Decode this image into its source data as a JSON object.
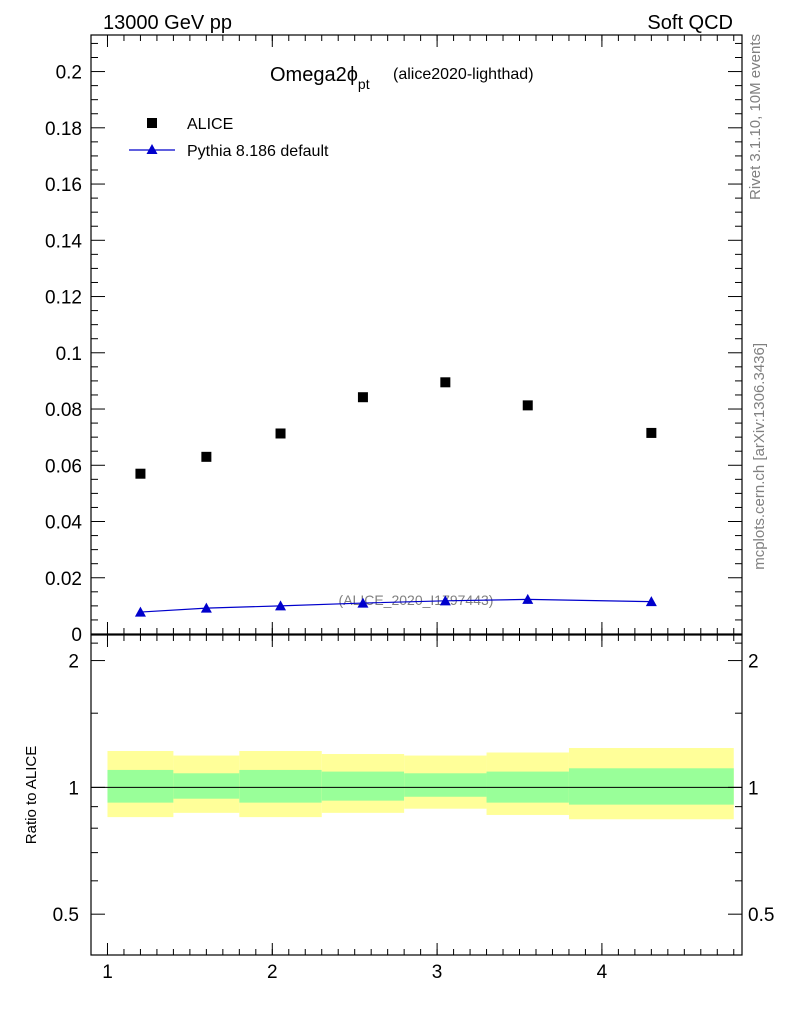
{
  "header": {
    "left": "13000 GeV pp",
    "right": "Soft QCD"
  },
  "side_text": {
    "top": "Rivet 3.1.10,  10M events",
    "bottom": "mcplots.cern.ch [arXiv:1306.3436]"
  },
  "title": {
    "main": "Omega2ϕ",
    "sub": "pt",
    "tag": "(alice2020-lighthad)"
  },
  "watermark": "(ALICE_2020_I1797443)",
  "colors": {
    "data": "#000000",
    "mc": "#0000cc",
    "band_inner": "#99ff99",
    "band_outer": "#ffff99"
  },
  "chart_data": [
    {
      "type": "scatter",
      "title": "Omega2ϕ pt",
      "xlim": [
        0.9,
        4.85
      ],
      "ylim": [
        0,
        0.213
      ],
      "yticks": [
        0,
        0.02,
        0.04,
        0.06,
        0.08,
        0.1,
        0.12,
        0.14,
        0.16,
        0.18,
        0.2
      ],
      "ytick_labels": [
        "0",
        "0.02",
        "0.04",
        "0.06",
        "0.08",
        "0.1",
        "0.12",
        "0.14",
        "0.16",
        "0.18",
        "0.2"
      ],
      "legend_position": "top-left",
      "series": [
        {
          "name": "ALICE",
          "marker": "square",
          "x": [
            1.2,
            1.6,
            2.05,
            2.55,
            3.05,
            3.55,
            4.3
          ],
          "y": [
            0.057,
            0.063,
            0.0713,
            0.0842,
            0.0895,
            0.0813,
            0.0715
          ]
        },
        {
          "name": "Pythia 8.186 default",
          "marker": "triangle",
          "x": [
            1.2,
            1.6,
            2.05,
            2.55,
            3.05,
            3.55,
            4.3
          ],
          "y": [
            0.0078,
            0.0092,
            0.01,
            0.011,
            0.0118,
            0.0123,
            0.0115
          ],
          "yerr": [
            0.0003,
            0.0003,
            0.0004,
            0.0005,
            0.0007,
            0.0015,
            0.0013
          ]
        }
      ]
    },
    {
      "type": "area",
      "ylabel": "Ratio to ALICE",
      "xlim": [
        0.9,
        4.85
      ],
      "ylim": [
        0.4,
        2.3
      ],
      "yscale": "log",
      "xticks": [
        1,
        2,
        3,
        4
      ],
      "xtick_labels": [
        "1",
        "2",
        "3",
        "4"
      ],
      "yticks": [
        0.5,
        1,
        2
      ],
      "ytick_labels": [
        "0.5",
        "1",
        "2"
      ],
      "reference_line": 1,
      "bands": [
        {
          "xlo": 1.0,
          "xhi": 1.4,
          "inner": [
            0.92,
            1.1
          ],
          "outer": [
            0.85,
            1.22
          ]
        },
        {
          "xlo": 1.4,
          "xhi": 1.8,
          "inner": [
            0.94,
            1.08
          ],
          "outer": [
            0.87,
            1.19
          ]
        },
        {
          "xlo": 1.8,
          "xhi": 2.3,
          "inner": [
            0.92,
            1.1
          ],
          "outer": [
            0.85,
            1.22
          ]
        },
        {
          "xlo": 2.3,
          "xhi": 2.8,
          "inner": [
            0.93,
            1.09
          ],
          "outer": [
            0.87,
            1.2
          ]
        },
        {
          "xlo": 2.8,
          "xhi": 3.3,
          "inner": [
            0.95,
            1.08
          ],
          "outer": [
            0.89,
            1.19
          ]
        },
        {
          "xlo": 3.3,
          "xhi": 3.8,
          "inner": [
            0.92,
            1.09
          ],
          "outer": [
            0.86,
            1.21
          ]
        },
        {
          "xlo": 3.8,
          "xhi": 4.8,
          "inner": [
            0.91,
            1.11
          ],
          "outer": [
            0.84,
            1.24
          ]
        }
      ]
    }
  ]
}
